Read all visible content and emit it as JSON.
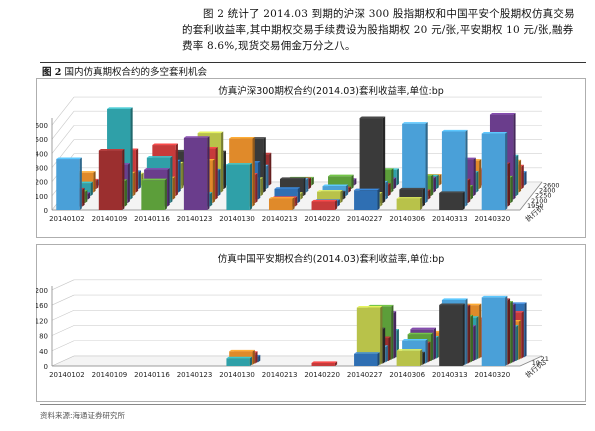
{
  "intro": {
    "paragraph": "图 2 统计了 2014.03 到期的沪深 300 股指期权和中国平安个股期权仿真交易的套利收益率,其中期权交易手续费设为股指期权 20 元/张,平安期权 10 元/张,融券费率 8.6%,现货交易佣金万分之八。"
  },
  "figure": {
    "label_num": "图 2",
    "label_text": "国内仿真期权合约的多空套利机会"
  },
  "source": {
    "text": "资料来源:海通证券研究所"
  },
  "chart_data": [
    {
      "type": "bar",
      "title": "仿真沪深300期权合约(2014.03)套利收益率,单位:bp",
      "x_categories": [
        "20140102",
        "20140109",
        "20140116",
        "20140123",
        "20140130",
        "20140213",
        "20140220",
        "20140227",
        "20140306",
        "20140313",
        "20140320"
      ],
      "y_ticks": [
        0,
        100,
        200,
        300,
        400,
        500,
        600
      ],
      "ylim": [
        0,
        650
      ],
      "depth_ticks": [
        "1950",
        "2100",
        "2250",
        "2400",
        "2600"
      ],
      "depth_label": "执行价",
      "series_groups": [
        {
          "x": "20140102",
          "values": [
            360,
            120,
            80,
            40,
            90,
            140,
            60,
            30
          ]
        },
        {
          "x": "20140109",
          "values": [
            420,
            180,
            270,
            640,
            160,
            300,
            120,
            80
          ]
        },
        {
          "x": "20140116",
          "values": [
            210,
            260,
            320,
            150,
            360,
            220,
            180,
            240
          ]
        },
        {
          "x": "20140123",
          "values": [
            510,
            90,
            300,
            360,
            180,
            420,
            260,
            140
          ]
        },
        {
          "x": "20140130",
          "values": [
            320,
            480,
            200,
            260,
            120,
            380,
            160,
            220
          ]
        },
        {
          "x": "20140213",
          "values": [
            80,
            60,
            100,
            40,
            120,
            90,
            70,
            50
          ]
        },
        {
          "x": "20140220",
          "values": [
            60,
            40,
            80,
            50,
            70,
            30,
            90,
            40
          ]
        },
        {
          "x": "20140227",
          "values": [
            140,
            90,
            600,
            120,
            80,
            160,
            70,
            110
          ]
        },
        {
          "x": "20140306",
          "values": [
            80,
            120,
            560,
            60,
            140,
            100,
            90,
            70
          ]
        },
        {
          "x": "20140313",
          "values": [
            120,
            530,
            160,
            90,
            260,
            140,
            200,
            110
          ]
        },
        {
          "x": "20140320",
          "values": [
            540,
            300,
            180,
            600,
            280,
            220,
            160,
            90
          ]
        }
      ]
    },
    {
      "type": "bar",
      "title": "仿真中国平安期权合约(2014.03)套利收益率,单位:bp",
      "x_categories": [
        "20140102",
        "20140109",
        "20140116",
        "20140123",
        "20140130",
        "20140213",
        "20140220",
        "20140227",
        "20140306",
        "20140313",
        "20140320"
      ],
      "y_ticks": [
        0,
        40,
        80,
        120,
        160,
        200
      ],
      "ylim": [
        0,
        210
      ],
      "depth_ticks": [
        "19.5",
        "21"
      ],
      "depth_label": "执行价",
      "series_groups": [
        {
          "x": "20140102",
          "values": [
            0,
            0,
            0,
            0
          ]
        },
        {
          "x": "20140109",
          "values": [
            0,
            0,
            0,
            0
          ]
        },
        {
          "x": "20140116",
          "values": [
            0,
            0,
            0,
            0
          ]
        },
        {
          "x": "20140123",
          "values": [
            0,
            0,
            0,
            0
          ]
        },
        {
          "x": "20140130",
          "values": [
            20,
            35,
            28,
            15
          ]
        },
        {
          "x": "20140213",
          "values": [
            0,
            0,
            0,
            0
          ]
        },
        {
          "x": "20140220",
          "values": [
            8,
            0,
            0,
            0
          ]
        },
        {
          "x": "20140227",
          "values": [
            32,
            150,
            90,
            40,
            60,
            140,
            120,
            70
          ]
        },
        {
          "x": "20140306",
          "values": [
            40,
            30,
            60,
            50,
            70,
            80,
            55,
            65
          ]
        },
        {
          "x": "20140313",
          "values": [
            160,
            170,
            150,
            120,
            90,
            110,
            140,
            100
          ]
        },
        {
          "x": "20140320",
          "values": [
            180,
            170,
            160,
            150,
            90,
            100,
            120,
            140
          ]
        }
      ]
    }
  ],
  "palette": [
    "#4aa0d8",
    "#9b2f2f",
    "#5c9e3a",
    "#6a3d8c",
    "#2fa0a8",
    "#e08a2a",
    "#c73b3b",
    "#2f6fb3",
    "#b8c24a",
    "#3a3a3a"
  ]
}
